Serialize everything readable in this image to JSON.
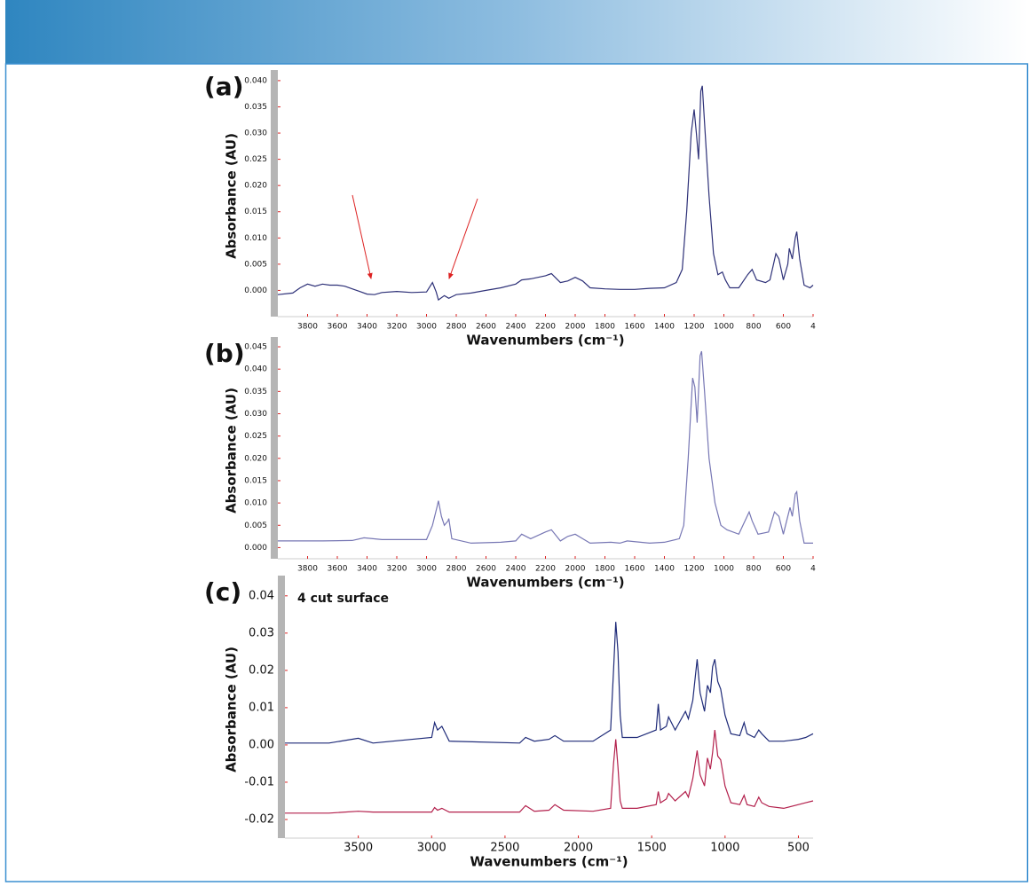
{
  "chart_data": [
    {
      "type": "line",
      "label": "(a)",
      "ylabel": "Absorbance (AU)",
      "xlabel": "Wavenumbers (cm⁻¹)",
      "xlim": [
        4000,
        400
      ],
      "ylim": [
        -0.005,
        0.041
      ],
      "xticks": [
        3800,
        3600,
        3400,
        3200,
        3000,
        2800,
        2600,
        2400,
        2200,
        2000,
        1800,
        1600,
        1400,
        1200,
        1000,
        800,
        600,
        {
          "value": 400,
          "label": "4"
        }
      ],
      "yticks": [
        {
          "value": 0,
          "label": "0.000"
        },
        {
          "value": 0.005,
          "label": "0.005"
        },
        {
          "value": 0.01,
          "label": "0.010"
        },
        {
          "value": 0.015,
          "label": "0.015"
        },
        {
          "value": 0.02,
          "label": "0.020"
        },
        {
          "value": 0.025,
          "label": "0.025"
        },
        {
          "value": 0.03,
          "label": "0.030"
        },
        {
          "value": 0.035,
          "label": "0.035"
        },
        {
          "value": 0.04,
          "label": "0.040"
        }
      ],
      "x": [
        4000,
        3900,
        3850,
        3800,
        3750,
        3700,
        3650,
        3600,
        3550,
        3500,
        3450,
        3400,
        3350,
        3300,
        3200,
        3100,
        3000,
        2960,
        2935,
        2920,
        2880,
        2850,
        2800,
        2700,
        2600,
        2500,
        2400,
        2360,
        2300,
        2200,
        2160,
        2100,
        2050,
        2000,
        1950,
        1900,
        1800,
        1700,
        1600,
        1500,
        1400,
        1320,
        1280,
        1250,
        1220,
        1200,
        1185,
        1170,
        1155,
        1145,
        1130,
        1100,
        1070,
        1040,
        1010,
        990,
        960,
        900,
        840,
        810,
        780,
        720,
        690,
        650,
        630,
        600,
        570,
        560,
        540,
        520,
        510,
        490,
        460,
        420,
        400
      ],
      "series": [
        {
          "color": "#2e3178",
          "values": [
            -0.0008,
            -0.0005,
            0.0005,
            0.0012,
            0.0008,
            0.0012,
            0.001,
            0.001,
            0.0008,
            0.0003,
            -0.0002,
            -0.0007,
            -0.0008,
            -0.0004,
            -0.0002,
            -0.0004,
            -0.0003,
            0.0015,
            -0.0003,
            -0.0018,
            -0.001,
            -0.0015,
            -0.0008,
            -0.0005,
            0,
            0.0005,
            0.0012,
            0.002,
            0.0022,
            0.0028,
            0.0032,
            0.0015,
            0.0018,
            0.0025,
            0.0018,
            0.0005,
            0.0003,
            0.0002,
            0.0002,
            0.0004,
            0.0005,
            0.0015,
            0.004,
            0.015,
            0.03,
            0.0345,
            0.03,
            0.025,
            0.038,
            0.039,
            0.032,
            0.018,
            0.007,
            0.003,
            0.0035,
            0.002,
            0.0005,
            0.0005,
            0.003,
            0.004,
            0.002,
            0.0015,
            0.002,
            0.007,
            0.006,
            0.002,
            0.005,
            0.008,
            0.006,
            0.01,
            0.0112,
            0.006,
            0.001,
            0.0005,
            0.001
          ]
        }
      ]
    },
    {
      "type": "line",
      "label": "(b)",
      "ylabel": "Absorbance (AU)",
      "xlabel": "Wavenumbers (cm⁻¹)",
      "xlim": [
        4000,
        400
      ],
      "ylim": [
        -0.0025,
        0.046
      ],
      "xticks": [
        3800,
        3600,
        3400,
        3200,
        3000,
        2800,
        2600,
        2400,
        2200,
        2000,
        1800,
        1600,
        1400,
        1200,
        1000,
        800,
        600,
        {
          "value": 400,
          "label": "4"
        }
      ],
      "yticks": [
        {
          "value": 0,
          "label": "0.000"
        },
        {
          "value": 0.005,
          "label": "0.005"
        },
        {
          "value": 0.01,
          "label": "0.010"
        },
        {
          "value": 0.015,
          "label": "0.015"
        },
        {
          "value": 0.02,
          "label": "0.020"
        },
        {
          "value": 0.025,
          "label": "0.025"
        },
        {
          "value": 0.03,
          "label": "0.030"
        },
        {
          "value": 0.035,
          "label": "0.035"
        },
        {
          "value": 0.04,
          "label": "0.040"
        },
        {
          "value": 0.045,
          "label": "0.045"
        }
      ],
      "x": [
        4000,
        3700,
        3500,
        3420,
        3300,
        3000,
        2960,
        2930,
        2920,
        2900,
        2880,
        2855,
        2850,
        2830,
        2700,
        2500,
        2400,
        2360,
        2300,
        2200,
        2160,
        2100,
        2050,
        2000,
        1950,
        1900,
        1760,
        1700,
        1650,
        1500,
        1400,
        1300,
        1270,
        1240,
        1210,
        1195,
        1180,
        1160,
        1150,
        1130,
        1100,
        1060,
        1020,
        980,
        900,
        830,
        810,
        770,
        700,
        660,
        630,
        600,
        570,
        555,
        540,
        520,
        510,
        490,
        460,
        400
      ],
      "series": [
        {
          "color": "#7777b4",
          "values": [
            0.0015,
            0.0015,
            0.0016,
            0.0022,
            0.0018,
            0.0018,
            0.005,
            0.009,
            0.0105,
            0.007,
            0.005,
            0.006,
            0.0065,
            0.002,
            0.001,
            0.0012,
            0.0015,
            0.003,
            0.002,
            0.0035,
            0.004,
            0.0015,
            0.0025,
            0.003,
            0.002,
            0.001,
            0.0012,
            0.001,
            0.0015,
            0.001,
            0.0012,
            0.002,
            0.005,
            0.02,
            0.038,
            0.036,
            0.028,
            0.043,
            0.044,
            0.035,
            0.02,
            0.01,
            0.005,
            0.004,
            0.003,
            0.008,
            0.006,
            0.003,
            0.0035,
            0.008,
            0.007,
            0.003,
            0.007,
            0.009,
            0.007,
            0.012,
            0.0125,
            0.006,
            0.001,
            0.001
          ]
        }
      ]
    },
    {
      "type": "line",
      "label": "(c)",
      "ylabel": "Absorbance (AU)",
      "xlabel": "Wavenumbers (cm⁻¹)",
      "annotation": "4 cut surface",
      "xlim": [
        4000,
        400
      ],
      "ylim": [
        -0.025,
        0.044
      ],
      "xticks": [
        3500,
        3000,
        2500,
        2000,
        1500,
        1000,
        500
      ],
      "yticks": [
        {
          "value": -0.02,
          "label": "-0.02"
        },
        {
          "value": -0.01,
          "label": "-0.01"
        },
        {
          "value": 0,
          "label": "0.00"
        },
        {
          "value": 0.01,
          "label": "0.01"
        },
        {
          "value": 0.02,
          "label": "0.02"
        },
        {
          "value": 0.03,
          "label": "0.03"
        },
        {
          "value": 0.04,
          "label": "0.04"
        }
      ],
      "x": [
        4000,
        3700,
        3500,
        3400,
        3000,
        2980,
        2960,
        2930,
        2880,
        2400,
        2360,
        2300,
        2200,
        2160,
        2100,
        1900,
        1780,
        1760,
        1745,
        1730,
        1715,
        1700,
        1600,
        1470,
        1455,
        1440,
        1400,
        1385,
        1340,
        1270,
        1250,
        1220,
        1190,
        1170,
        1140,
        1120,
        1100,
        1085,
        1070,
        1050,
        1030,
        1000,
        960,
        900,
        870,
        850,
        800,
        770,
        750,
        700,
        600,
        500,
        450,
        400
      ],
      "series": [
        {
          "color": "#1e2a78",
          "values": [
            0.0005,
            0.0005,
            0.0018,
            0.0005,
            0.002,
            0.006,
            0.004,
            0.005,
            0.001,
            0.0005,
            0.002,
            0.001,
            0.0015,
            0.0025,
            0.001,
            0.001,
            0.004,
            0.02,
            0.033,
            0.025,
            0.008,
            0.002,
            0.002,
            0.004,
            0.011,
            0.004,
            0.005,
            0.0075,
            0.004,
            0.009,
            0.007,
            0.012,
            0.023,
            0.014,
            0.009,
            0.016,
            0.014,
            0.021,
            0.023,
            0.017,
            0.015,
            0.008,
            0.003,
            0.0025,
            0.006,
            0.003,
            0.002,
            0.004,
            0.003,
            0.001,
            0.001,
            0.0015,
            0.002,
            0.003
          ]
        },
        {
          "color": "#b3204c",
          "values": [
            -0.0183,
            -0.0183,
            -0.0178,
            -0.018,
            -0.018,
            -0.0168,
            -0.0175,
            -0.017,
            -0.018,
            -0.018,
            -0.0163,
            -0.0178,
            -0.0175,
            -0.016,
            -0.0175,
            -0.0178,
            -0.017,
            -0.005,
            0.0015,
            -0.006,
            -0.015,
            -0.017,
            -0.017,
            -0.016,
            -0.0125,
            -0.0155,
            -0.0145,
            -0.013,
            -0.015,
            -0.0125,
            -0.014,
            -0.009,
            -0.0015,
            -0.008,
            -0.011,
            -0.0035,
            -0.0065,
            -0.002,
            0.004,
            -0.003,
            -0.004,
            -0.011,
            -0.0155,
            -0.016,
            -0.0135,
            -0.016,
            -0.0165,
            -0.014,
            -0.0155,
            -0.0165,
            -0.017,
            -0.016,
            -0.0155,
            -0.015
          ]
        }
      ]
    }
  ]
}
